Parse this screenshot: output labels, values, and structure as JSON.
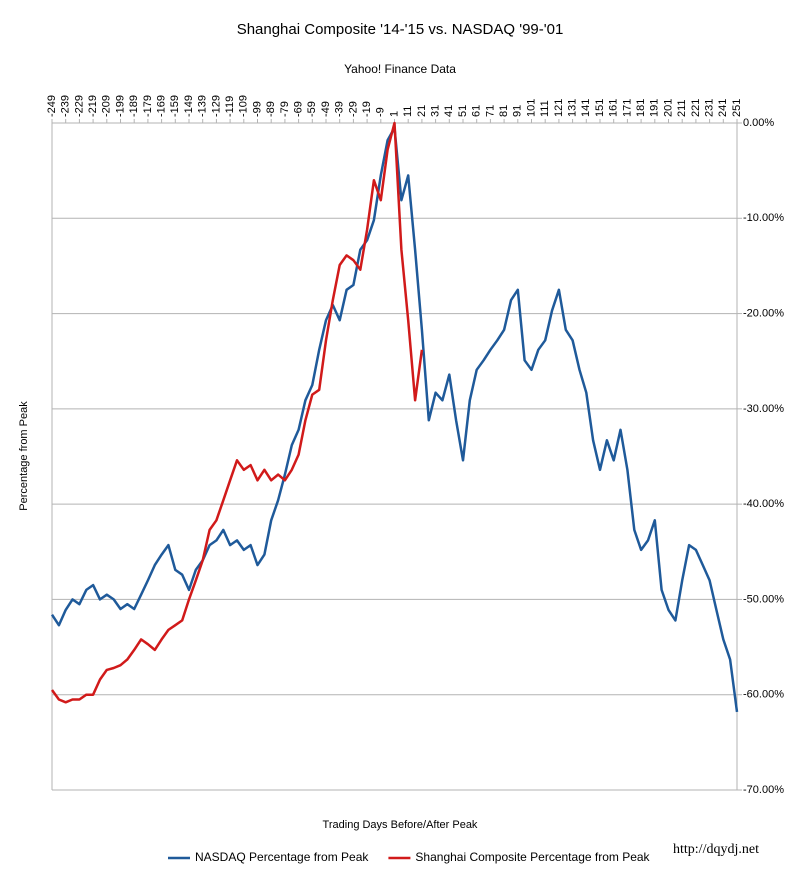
{
  "chart_data": {
    "type": "line",
    "title": "Shanghai Composite '14-'15 vs. NASDAQ '99-'01",
    "subtitle": "Yahoo! Finance Data",
    "x_label": "Trading Days Before/After Peak",
    "y_label": "Percentage from Peak",
    "source": "http://dqydj.net",
    "x": [
      -249,
      -244,
      -239,
      -234,
      -229,
      -224,
      -219,
      -214,
      -209,
      -204,
      -199,
      -194,
      -189,
      -184,
      -179,
      -174,
      -169,
      -164,
      -159,
      -154,
      -149,
      -144,
      -139,
      -134,
      -129,
      -124,
      -119,
      -114,
      -109,
      -104,
      -99,
      -94,
      -89,
      -84,
      -79,
      -74,
      -69,
      -64,
      -59,
      -54,
      -49,
      -44,
      -39,
      -34,
      -29,
      -24,
      -19,
      -14,
      -9,
      -4,
      1,
      6,
      11,
      16,
      21,
      26,
      31,
      36,
      41,
      46,
      51,
      56,
      61,
      66,
      71,
      76,
      81,
      86,
      91,
      96,
      101,
      106,
      111,
      116,
      121,
      126,
      131,
      136,
      141,
      146,
      151,
      156,
      161,
      166,
      171,
      176,
      181,
      186,
      191,
      196,
      201,
      206,
      211,
      216,
      221,
      226,
      231,
      236,
      241,
      246,
      251
    ],
    "series": [
      {
        "name": "NASDAQ Percentage from Peak",
        "color": "#1f5a9a",
        "values": [
          -51.6,
          -52.7,
          -51.1,
          -50,
          -50.5,
          -49,
          -48.5,
          -50,
          -49.5,
          -50,
          -51,
          -50.5,
          -51,
          -49.5,
          -48,
          -46.4,
          -45.3,
          -44.3,
          -46.9,
          -47.4,
          -49,
          -46.9,
          -45.9,
          -44.3,
          -43.8,
          -42.7,
          -44.3,
          -43.8,
          -44.8,
          -44.3,
          -46.4,
          -45.3,
          -41.7,
          -39.6,
          -36.9,
          -33.8,
          -32.2,
          -29.1,
          -27.5,
          -23.8,
          -20.7,
          -19.1,
          -20.7,
          -17.5,
          -17,
          -13.3,
          -12.3,
          -10.2,
          -5.5,
          -1.8,
          -0.5,
          -8.1,
          -5.5,
          -13.3,
          -21.7,
          -31.2,
          -28.3,
          -29.1,
          -26.4,
          -31.2,
          -35.4,
          -29.1,
          -25.9,
          -24.9,
          -23.8,
          -22.8,
          -21.7,
          -18.6,
          -17.5,
          -24.9,
          -25.9,
          -23.8,
          -22.8,
          -19.7,
          -17.5,
          -21.7,
          -22.8,
          -25.9,
          -28.3,
          -33.3,
          -36.4,
          -33.3,
          -35.4,
          -32.2,
          -36.4,
          -42.7,
          -44.8,
          -43.8,
          -41.7,
          -49,
          -51.1,
          -52.2,
          -48,
          -44.3,
          -44.8,
          -46.4,
          -48,
          -51.1,
          -54.2,
          -56.3,
          -61.8
        ]
      },
      {
        "name": "Shanghai Composite Percentage from Peak",
        "color": "#d11a1a",
        "values": [
          -59.5,
          -60.5,
          -60.8,
          -60.5,
          -60.5,
          -60,
          -60,
          -58.4,
          -57.4,
          -57.2,
          -56.9,
          -56.3,
          -55.3,
          -54.2,
          -54.7,
          -55.3,
          -54.2,
          -53.2,
          -52.7,
          -52.2,
          -50,
          -48,
          -45.9,
          -42.7,
          -41.7,
          -39.6,
          -37.5,
          -35.4,
          -36.4,
          -35.9,
          -37.5,
          -36.4,
          -37.5,
          -36.9,
          -37.5,
          -36.4,
          -34.8,
          -31.2,
          -28.5,
          -28,
          -22.8,
          -18.6,
          -14.9,
          -13.9,
          -14.4,
          -15.4,
          -11.2,
          -6,
          -8.1,
          -2.8,
          0,
          -13.3,
          -20.7,
          -29.1,
          -23.8,
          null,
          null,
          null,
          null,
          null,
          null,
          null,
          null,
          null,
          null,
          null,
          null,
          null,
          null,
          null,
          null,
          null,
          null,
          null,
          null,
          null,
          null,
          null,
          null,
          null,
          null,
          null,
          null,
          null,
          null,
          null,
          null,
          null,
          null,
          null,
          null,
          null,
          null,
          null,
          null,
          null,
          null,
          null,
          null,
          null,
          null
        ]
      }
    ],
    "xlim": [
      -249,
      251
    ],
    "xticks": [
      -249,
      -239,
      -229,
      -219,
      -209,
      -199,
      -189,
      -179,
      -169,
      -159,
      -149,
      -139,
      -129,
      -119,
      -109,
      -99,
      -89,
      -79,
      -69,
      -59,
      -49,
      -39,
      -29,
      -19,
      -9,
      1,
      11,
      21,
      31,
      41,
      51,
      61,
      71,
      81,
      91,
      101,
      111,
      121,
      131,
      141,
      151,
      161,
      171,
      181,
      191,
      201,
      211,
      221,
      231,
      241,
      251
    ],
    "ylim": [
      -70,
      0
    ],
    "yticks": [
      {
        "value": 0,
        "label": "0.00%"
      },
      {
        "value": -10,
        "label": "-10.00%"
      },
      {
        "value": -20,
        "label": "-20.00%"
      },
      {
        "value": -30,
        "label": "-30.00%"
      },
      {
        "value": -40,
        "label": "-40.00%"
      },
      {
        "value": -50,
        "label": "-50.00%"
      },
      {
        "value": -60,
        "label": "-60.00%"
      },
      {
        "value": -70,
        "label": "-70.00%"
      }
    ],
    "grid": true,
    "legend": "bottom"
  }
}
